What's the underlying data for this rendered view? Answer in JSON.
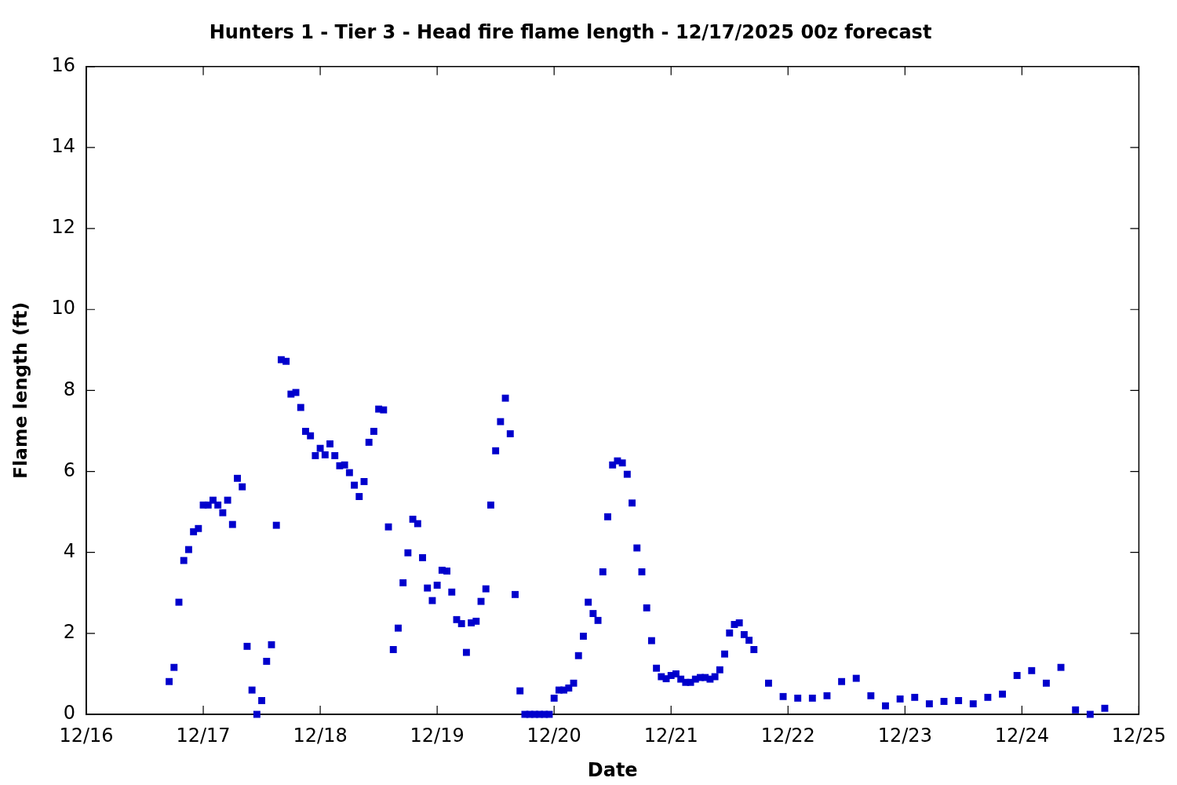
{
  "chart_data": {
    "type": "scatter",
    "title": "Hunters 1 - Tier 3 - Head fire flame length - 12/17/2025 00z forecast",
    "xlabel": "Date",
    "ylabel": "Flame length (ft)",
    "x": [
      "2025-12-16T17:00",
      "2025-12-16T18:00",
      "2025-12-16T19:00",
      "2025-12-16T20:00",
      "2025-12-16T21:00",
      "2025-12-16T22:00",
      "2025-12-16T23:00",
      "2025-12-17T00:00",
      "2025-12-17T01:00",
      "2025-12-17T02:00",
      "2025-12-17T03:00",
      "2025-12-17T04:00",
      "2025-12-17T05:00",
      "2025-12-17T06:00",
      "2025-12-17T07:00",
      "2025-12-17T08:00",
      "2025-12-17T09:00",
      "2025-12-17T10:00",
      "2025-12-17T11:00",
      "2025-12-17T12:00",
      "2025-12-17T13:00",
      "2025-12-17T14:00",
      "2025-12-17T15:00",
      "2025-12-17T16:00",
      "2025-12-17T17:00",
      "2025-12-17T18:00",
      "2025-12-17T19:00",
      "2025-12-17T20:00",
      "2025-12-17T21:00",
      "2025-12-17T22:00",
      "2025-12-17T23:00",
      "2025-12-18T00:00",
      "2025-12-18T01:00",
      "2025-12-18T02:00",
      "2025-12-18T03:00",
      "2025-12-18T04:00",
      "2025-12-18T05:00",
      "2025-12-18T06:00",
      "2025-12-18T07:00",
      "2025-12-18T08:00",
      "2025-12-18T09:00",
      "2025-12-18T10:00",
      "2025-12-18T11:00",
      "2025-12-18T12:00",
      "2025-12-18T13:00",
      "2025-12-18T14:00",
      "2025-12-18T15:00",
      "2025-12-18T16:00",
      "2025-12-18T17:00",
      "2025-12-18T18:00",
      "2025-12-18T19:00",
      "2025-12-18T20:00",
      "2025-12-18T21:00",
      "2025-12-18T22:00",
      "2025-12-18T23:00",
      "2025-12-19T00:00",
      "2025-12-19T01:00",
      "2025-12-19T02:00",
      "2025-12-19T03:00",
      "2025-12-19T04:00",
      "2025-12-19T05:00",
      "2025-12-19T06:00",
      "2025-12-19T07:00",
      "2025-12-19T08:00",
      "2025-12-19T09:00",
      "2025-12-19T10:00",
      "2025-12-19T11:00",
      "2025-12-19T12:00",
      "2025-12-19T13:00",
      "2025-12-19T14:00",
      "2025-12-19T15:00",
      "2025-12-19T16:00",
      "2025-12-19T17:00",
      "2025-12-19T18:00",
      "2025-12-19T19:00",
      "2025-12-19T20:00",
      "2025-12-19T21:00",
      "2025-12-19T22:00",
      "2025-12-19T23:00",
      "2025-12-20T00:00",
      "2025-12-20T01:00",
      "2025-12-20T02:00",
      "2025-12-20T03:00",
      "2025-12-20T04:00",
      "2025-12-20T05:00",
      "2025-12-20T06:00",
      "2025-12-20T07:00",
      "2025-12-20T08:00",
      "2025-12-20T09:00",
      "2025-12-20T10:00",
      "2025-12-20T11:00",
      "2025-12-20T12:00",
      "2025-12-20T13:00",
      "2025-12-20T14:00",
      "2025-12-20T15:00",
      "2025-12-20T16:00",
      "2025-12-20T17:00",
      "2025-12-20T18:00",
      "2025-12-20T19:00",
      "2025-12-20T20:00",
      "2025-12-20T21:00",
      "2025-12-20T22:00",
      "2025-12-20T23:00",
      "2025-12-21T00:00",
      "2025-12-21T01:00",
      "2025-12-21T02:00",
      "2025-12-21T03:00",
      "2025-12-21T04:00",
      "2025-12-21T05:00",
      "2025-12-21T06:00",
      "2025-12-21T07:00",
      "2025-12-21T08:00",
      "2025-12-21T09:00",
      "2025-12-21T10:00",
      "2025-12-21T11:00",
      "2025-12-21T12:00",
      "2025-12-21T13:00",
      "2025-12-21T14:00",
      "2025-12-21T15:00",
      "2025-12-21T16:00",
      "2025-12-21T17:00",
      "2025-12-21T20:00",
      "2025-12-21T23:00",
      "2025-12-22T02:00",
      "2025-12-22T05:00",
      "2025-12-22T08:00",
      "2025-12-22T11:00",
      "2025-12-22T14:00",
      "2025-12-22T17:00",
      "2025-12-22T20:00",
      "2025-12-22T23:00",
      "2025-12-23T02:00",
      "2025-12-23T05:00",
      "2025-12-23T08:00",
      "2025-12-23T11:00",
      "2025-12-23T14:00",
      "2025-12-23T17:00",
      "2025-12-23T20:00",
      "2025-12-23T23:00",
      "2025-12-24T02:00",
      "2025-12-24T05:00",
      "2025-12-24T08:00",
      "2025-12-24T11:00",
      "2025-12-24T14:00",
      "2025-12-24T17:00"
    ],
    "values": [
      0.81,
      1.16,
      2.77,
      3.8,
      4.07,
      4.51,
      4.59,
      5.17,
      5.17,
      5.29,
      5.17,
      4.98,
      5.29,
      4.69,
      5.83,
      5.62,
      1.68,
      0.6,
      0.0,
      0.34,
      1.31,
      1.72,
      4.67,
      8.76,
      8.72,
      7.91,
      7.95,
      7.58,
      6.99,
      6.88,
      6.39,
      6.57,
      6.41,
      6.68,
      6.39,
      6.14,
      6.16,
      5.97,
      5.66,
      5.38,
      5.75,
      6.72,
      6.99,
      7.54,
      7.52,
      4.63,
      1.6,
      2.13,
      3.25,
      3.99,
      4.82,
      4.71,
      3.87,
      3.12,
      2.81,
      3.19,
      3.56,
      3.54,
      3.02,
      2.34,
      2.24,
      1.53,
      2.26,
      2.3,
      2.79,
      3.1,
      5.17,
      6.51,
      7.23,
      7.81,
      6.93,
      2.96,
      0.58,
      0.0,
      0.0,
      0.0,
      0.0,
      0.0,
      0.0,
      0.4,
      0.6,
      0.6,
      0.65,
      0.77,
      1.45,
      1.93,
      2.77,
      2.49,
      2.32,
      3.52,
      4.88,
      6.16,
      6.26,
      6.21,
      5.93,
      5.22,
      4.11,
      3.52,
      2.63,
      1.82,
      1.14,
      0.93,
      0.88,
      0.96,
      1.0,
      0.87,
      0.79,
      0.79,
      0.87,
      0.91,
      0.91,
      0.87,
      0.93,
      1.1,
      1.49,
      2.01,
      2.22,
      2.26,
      1.97,
      1.83,
      1.6,
      0.77,
      0.44,
      0.4,
      0.4,
      0.46,
      0.81,
      0.89,
      0.46,
      0.21,
      0.38,
      0.42,
      0.26,
      0.32,
      0.34,
      0.26,
      0.42,
      0.5,
      0.96,
      1.08,
      0.77,
      1.16,
      0.11,
      0.0,
      0.15
    ],
    "color": "#0000cc",
    "marker": "square",
    "xlim": [
      "2025-12-16",
      "2025-12-25"
    ],
    "xticks": [
      {
        "value": "2025-12-16",
        "label": "12/16"
      },
      {
        "value": "2025-12-17",
        "label": "12/17"
      },
      {
        "value": "2025-12-18",
        "label": "12/18"
      },
      {
        "value": "2025-12-19",
        "label": "12/19"
      },
      {
        "value": "2025-12-20",
        "label": "12/20"
      },
      {
        "value": "2025-12-21",
        "label": "12/21"
      },
      {
        "value": "2025-12-22",
        "label": "12/22"
      },
      {
        "value": "2025-12-23",
        "label": "12/23"
      },
      {
        "value": "2025-12-24",
        "label": "12/24"
      },
      {
        "value": "2025-12-25",
        "label": "12/25"
      }
    ],
    "ylim": [
      0,
      16
    ],
    "yticks": [
      0,
      2,
      4,
      6,
      8,
      10,
      12,
      14,
      16
    ]
  }
}
